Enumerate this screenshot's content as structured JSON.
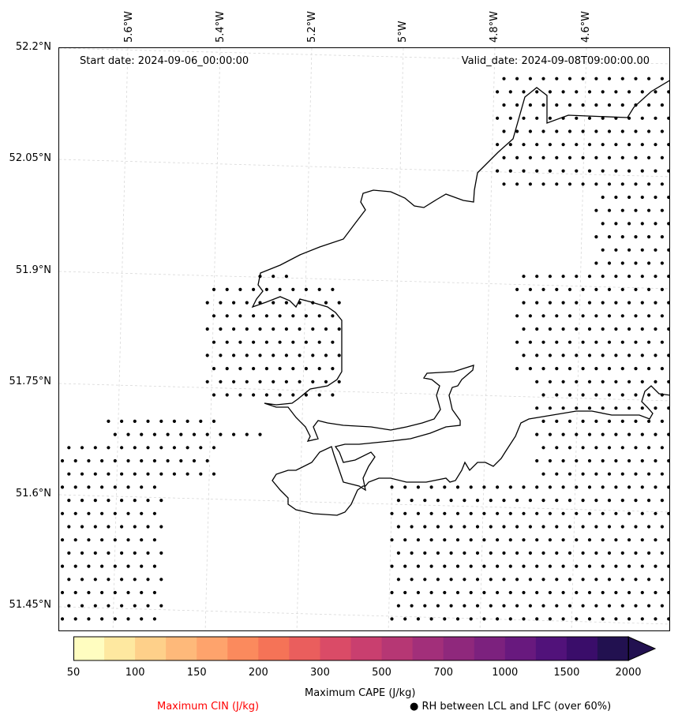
{
  "annotations": {
    "start_date": "Start date: 2024-09-06_00:00:00",
    "valid_date": "Valid_date: 2024-09-08T09:00:00.00"
  },
  "lat_labels": [
    "52.2°N",
    "52.05°N",
    "51.9°N",
    "51.75°N",
    "51.6°N",
    "51.45°N"
  ],
  "lon_labels": [
    "5.6°W",
    "5.4°W",
    "5.2°W",
    "5°W",
    "4.8°W",
    "4.6°W"
  ],
  "colorbar": {
    "label": "Maximum CAPE (J/kg)",
    "ticks": [
      "50",
      "100",
      "150",
      "200",
      "300",
      "500",
      "700",
      "1000",
      "1500",
      "2000"
    ],
    "colors": [
      "#fffdc0",
      "#fee8a0",
      "#fed08a",
      "#feb97a",
      "#fea36c",
      "#fb8a5d",
      "#f57357",
      "#ea5e5d",
      "#da4b67",
      "#c93f6f",
      "#b63774",
      "#a22f7a",
      "#8f287c",
      "#7c217e",
      "#68197e",
      "#51127a",
      "#3a0d6a",
      "#221150"
    ],
    "extend": "max"
  },
  "legend": {
    "cin_label": "Maximum CIN (J/kg)",
    "cin_color": "#ff0000",
    "rh_symbol": "●",
    "rh_label": "RH between LCL and LFC (over 60%)"
  }
}
